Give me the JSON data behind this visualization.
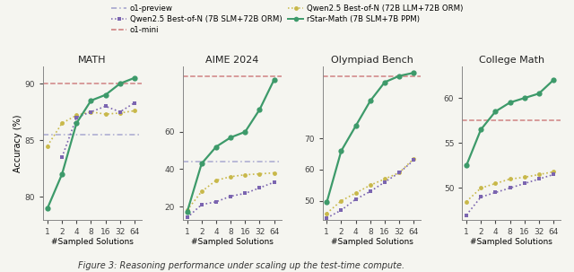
{
  "x_vals": [
    1,
    2,
    4,
    8,
    16,
    32,
    64
  ],
  "subplots": [
    {
      "title": "MATH",
      "ylim": [
        78.0,
        91.5
      ],
      "yticks": [
        80,
        85,
        90
      ],
      "o1_preview": 85.5,
      "o1_mini": 90.0,
      "rstar": [
        79.0,
        82.0,
        86.5,
        88.5,
        89.0,
        90.0,
        90.5
      ],
      "qwen_7b": [
        null,
        83.5,
        87.0,
        87.5,
        88.0,
        87.5,
        88.3
      ],
      "qwen_72b": [
        84.5,
        86.5,
        87.2,
        87.5,
        87.3,
        87.4,
        87.6
      ]
    },
    {
      "title": "AIME 2024",
      "ylim": [
        13,
        95
      ],
      "yticks": [
        20,
        40,
        60
      ],
      "o1_preview": 44.0,
      "o1_mini": 90.0,
      "rstar": [
        17.0,
        43.0,
        52.0,
        57.0,
        60.0,
        72.0,
        88.0
      ],
      "qwen_7b": [
        14.0,
        21.0,
        22.5,
        25.5,
        27.0,
        30.0,
        33.0
      ],
      "qwen_72b": [
        18.0,
        28.0,
        34.0,
        36.0,
        37.0,
        37.5,
        38.0
      ]
    },
    {
      "title": "Olympiad Bench",
      "ylim": [
        44,
        93
      ],
      "yticks": [
        50,
        60,
        70
      ],
      "o1_preview": null,
      "o1_mini": 90.0,
      "rstar": [
        49.5,
        66.0,
        74.0,
        82.0,
        88.0,
        90.0,
        91.0
      ],
      "qwen_7b": [
        44.5,
        47.0,
        50.5,
        53.0,
        56.0,
        59.0,
        63.0
      ],
      "qwen_72b": [
        46.0,
        50.0,
        52.5,
        55.0,
        57.0,
        59.0,
        63.5
      ]
    },
    {
      "title": "College Math",
      "ylim": [
        46.5,
        63.5
      ],
      "yticks": [
        50,
        55,
        60
      ],
      "o1_preview": null,
      "o1_mini": 57.5,
      "rstar": [
        52.5,
        56.5,
        58.5,
        59.5,
        60.0,
        60.5,
        62.0
      ],
      "qwen_7b": [
        47.0,
        49.0,
        49.5,
        50.0,
        50.5,
        51.0,
        51.5
      ],
      "qwen_72b": [
        48.5,
        50.0,
        50.5,
        51.0,
        51.2,
        51.5,
        51.8
      ]
    }
  ],
  "colors": {
    "o1_preview": "#a0a0cc",
    "o1_mini": "#cc7777",
    "rstar": "#3d9a6a",
    "qwen_7b": "#7b65b0",
    "qwen_72b": "#c8b84a"
  },
  "bg_color": "#f5f5f0",
  "legend": {
    "o1_preview": "o1-preview",
    "o1_mini": "o1-mini",
    "rstar": "rStar-Math (7B SLM+7B PPM)",
    "qwen_7b": "Qwen2.5 Best-of-N (7B SLM+72B ORM)",
    "qwen_72b": "Qwen2.5 Best-of-N (72B LLM+72B ORM)"
  },
  "figure_caption": "Figure 3: Reasoning performance under scaling up the test-time compute.",
  "ylabel": "Accuracy (%)"
}
